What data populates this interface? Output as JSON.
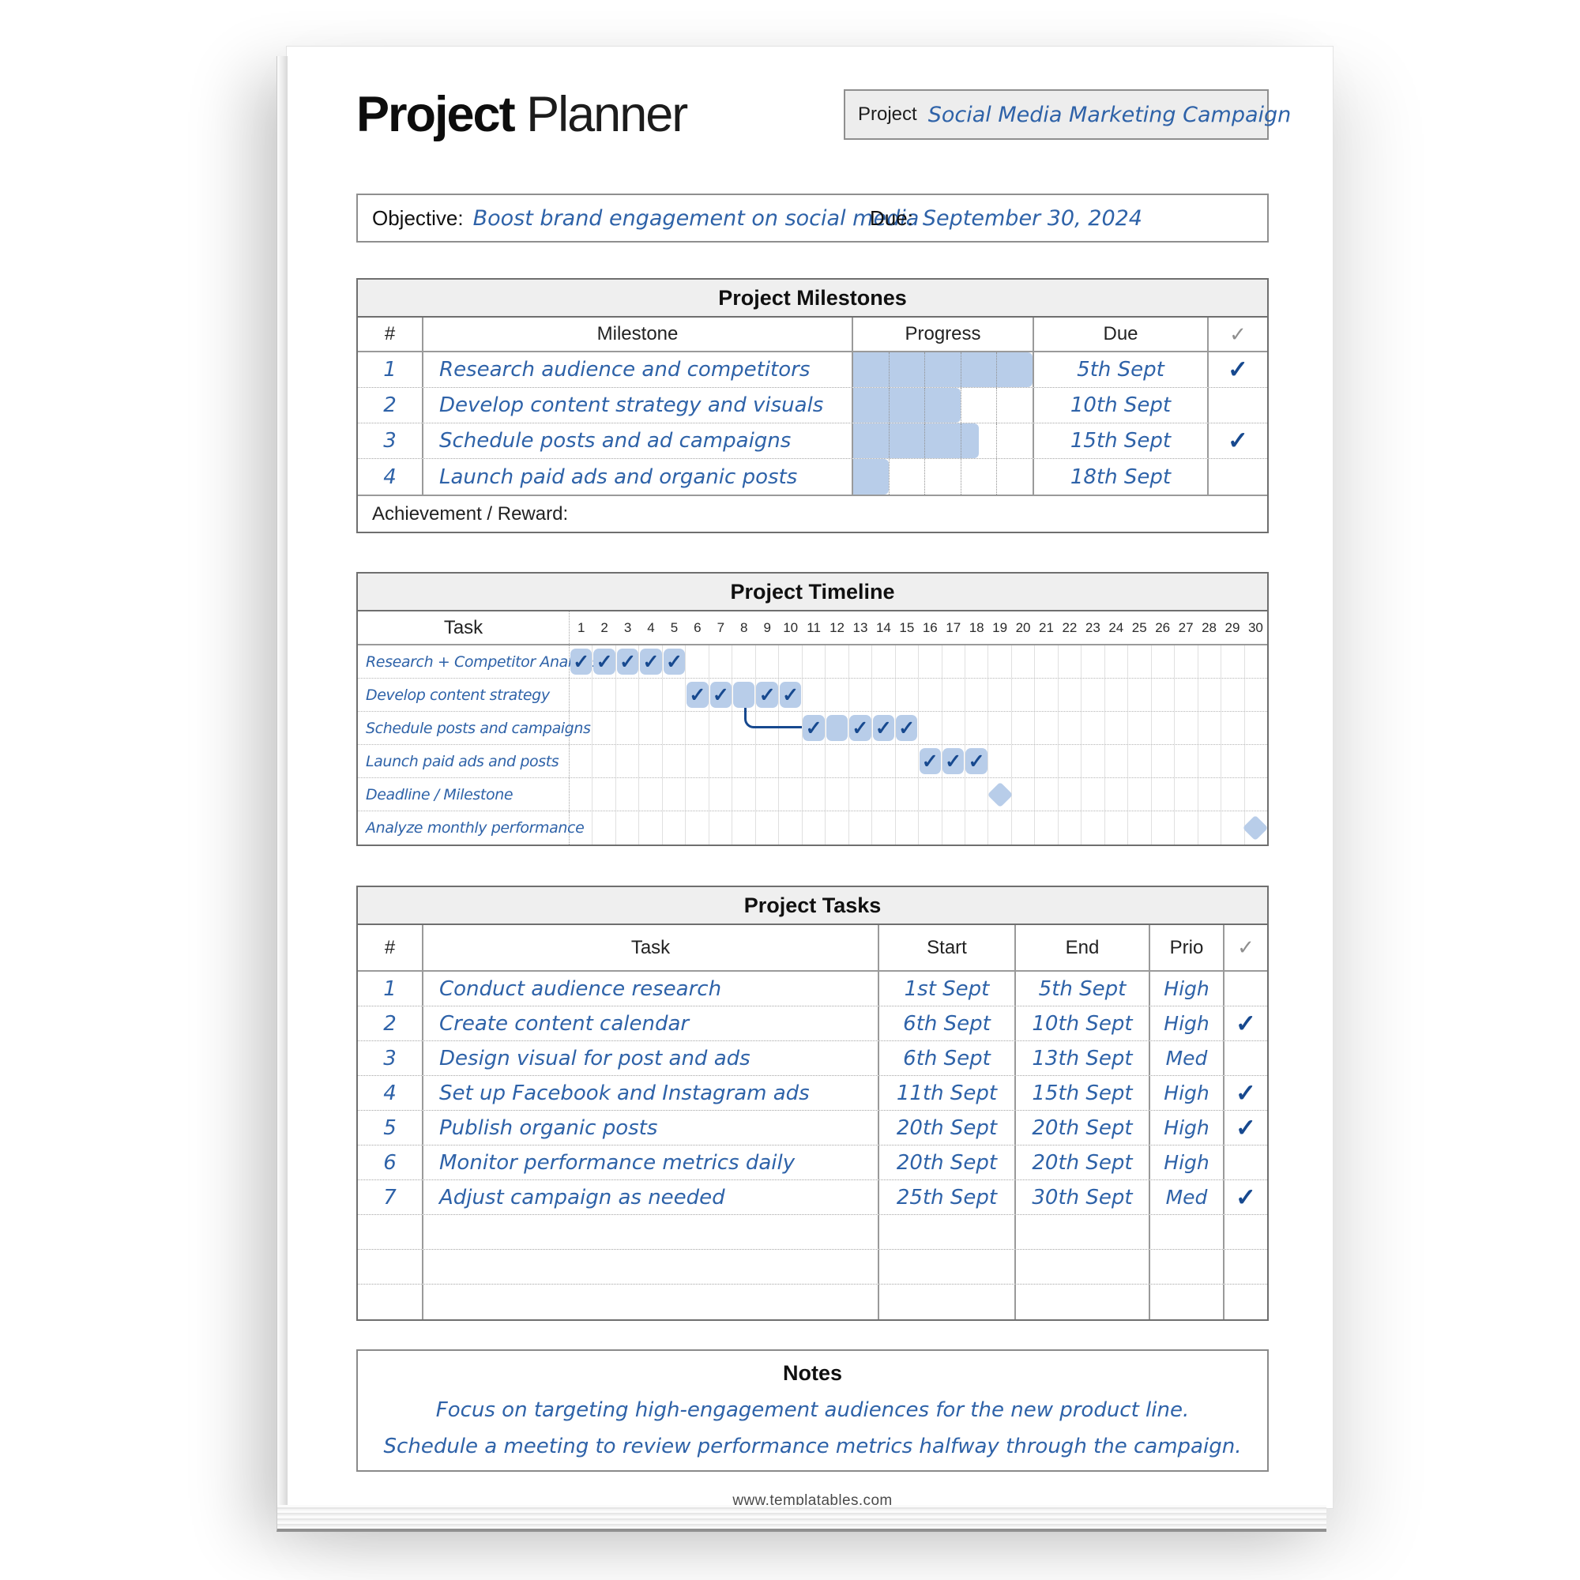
{
  "header": {
    "title_primary": "Project",
    "title_secondary": "Planner",
    "project_label": "Project",
    "project_value": "Social Media Marketing Campaign"
  },
  "objective_bar": {
    "objective_label": "Objective:",
    "objective_value": "Boost brand engagement on social media",
    "due_label": "Due:",
    "due_value": "September 30, 2024"
  },
  "milestones": {
    "title": "Project Milestones",
    "columns": [
      "#",
      "Milestone",
      "Progress",
      "Due",
      "✓"
    ],
    "rows": [
      {
        "num": "1",
        "milestone": "Research audience and competitors",
        "progress_percent": 100,
        "due": "5th Sept",
        "done": true
      },
      {
        "num": "2",
        "milestone": "Develop content strategy and visuals",
        "progress_percent": 60,
        "due": "10th Sept",
        "done": false
      },
      {
        "num": "3",
        "milestone": "Schedule posts and ad campaigns",
        "progress_percent": 70,
        "due": "15th Sept",
        "done": true
      },
      {
        "num": "4",
        "milestone": "Launch paid ads and organic posts",
        "progress_percent": 20,
        "due": "18th Sept",
        "done": false
      }
    ],
    "footer_label": "Achievement / Reward:"
  },
  "timeline": {
    "title": "Project Timeline",
    "task_column_label": "Task",
    "days": [
      1,
      2,
      3,
      4,
      5,
      6,
      7,
      8,
      9,
      10,
      11,
      12,
      13,
      14,
      15,
      16,
      17,
      18,
      19,
      20,
      21,
      22,
      23,
      24,
      25,
      26,
      27,
      28,
      29,
      30
    ],
    "rows": [
      {
        "label": "Research + Competitor Analysis",
        "bar_start": 1,
        "bar_end": 5,
        "checked_days": [
          1,
          2,
          3,
          4,
          5
        ]
      },
      {
        "label": "Develop content strategy",
        "bar_start": 6,
        "bar_end": 10,
        "checked_days": [
          6,
          7,
          9,
          10
        ]
      },
      {
        "label": "Schedule posts and campaigns",
        "bar_start": 11,
        "bar_end": 15,
        "checked_days": [
          11,
          13,
          14,
          15
        ],
        "connector_from_day": 8
      },
      {
        "label": "Launch paid ads and posts",
        "bar_start": 16,
        "bar_end": 18,
        "checked_days": [
          16,
          17,
          18
        ]
      },
      {
        "label": "Deadline / Milestone",
        "milestone_day": 19
      },
      {
        "label": "Analyze monthly performance",
        "milestone_day": 30
      }
    ]
  },
  "tasks": {
    "title": "Project Tasks",
    "columns": [
      "#",
      "Task",
      "Start",
      "End",
      "Prio",
      "✓"
    ],
    "rows": [
      {
        "num": "1",
        "task": "Conduct audience research",
        "start": "1st Sept",
        "end": "5th Sept",
        "prio": "High",
        "done": false
      },
      {
        "num": "2",
        "task": "Create content calendar",
        "start": "6th Sept",
        "end": "10th Sept",
        "prio": "High",
        "done": true
      },
      {
        "num": "3",
        "task": "Design visual for post and ads",
        "start": "6th Sept",
        "end": "13th Sept",
        "prio": "Med",
        "done": false
      },
      {
        "num": "4",
        "task": "Set up Facebook and Instagram ads",
        "start": "11th Sept",
        "end": "15th Sept",
        "prio": "High",
        "done": true
      },
      {
        "num": "5",
        "task": "Publish organic posts",
        "start": "20th Sept",
        "end": "20th Sept",
        "prio": "High",
        "done": true
      },
      {
        "num": "6",
        "task": "Monitor performance metrics daily",
        "start": "20th Sept",
        "end": "20th Sept",
        "prio": "High",
        "done": false
      },
      {
        "num": "7",
        "task": "Adjust campaign as needed",
        "start": "25th Sept",
        "end": "30th Sept",
        "prio": "Med",
        "done": true
      },
      {
        "num": "",
        "task": "",
        "start": "",
        "end": "",
        "prio": "",
        "done": false
      },
      {
        "num": "",
        "task": "",
        "start": "",
        "end": "",
        "prio": "",
        "done": false
      },
      {
        "num": "",
        "task": "",
        "start": "",
        "end": "",
        "prio": "",
        "done": false
      }
    ]
  },
  "notes": {
    "title": "Notes",
    "lines": [
      "Focus on targeting high-engagement audiences for the new product line.",
      "Schedule a meeting to review performance metrics halfway through the campaign."
    ]
  },
  "footer": {
    "website": "www.templatables.com"
  },
  "glyphs": {
    "check": "✓"
  },
  "colors": {
    "ink_blue": "#2e62a8",
    "check_blue": "#17498f",
    "bar_blue": "#b8cde9",
    "header_gray": "#efefef"
  }
}
